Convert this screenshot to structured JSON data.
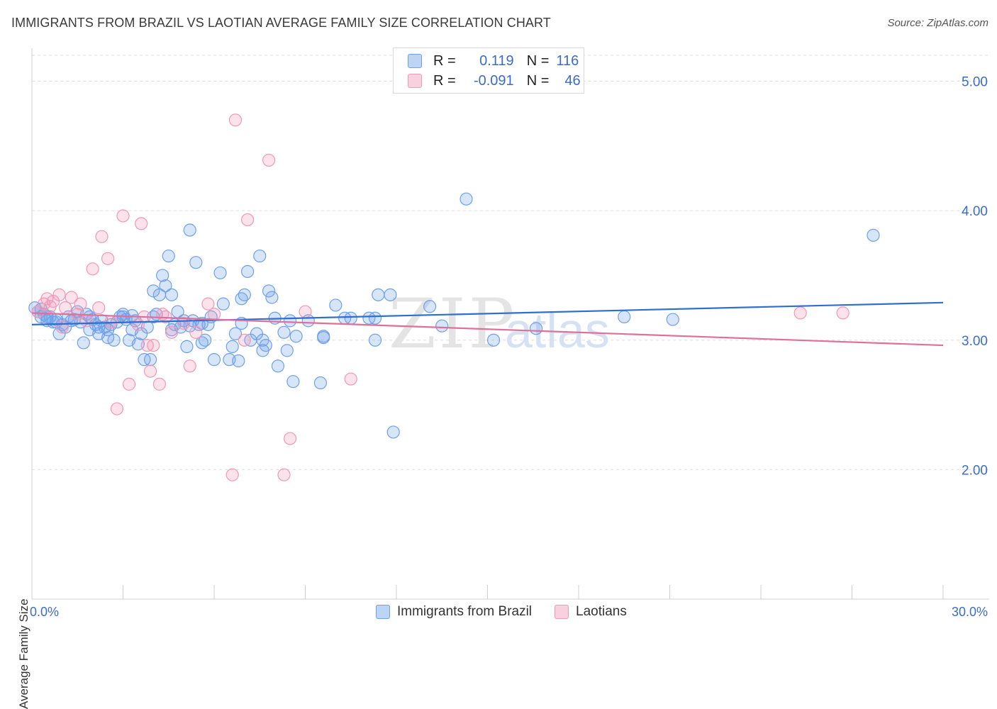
{
  "title": "IMMIGRANTS FROM BRAZIL VS LAOTIAN AVERAGE FAMILY SIZE CORRELATION CHART",
  "source": "Source: ZipAtlas.com",
  "watermark": {
    "zip": "ZIP",
    "atlas": "atlas"
  },
  "legend": {
    "rows": [
      {
        "r_label": "R =",
        "r_value": "0.119",
        "n_label": "N =",
        "n_value": "116",
        "color": "#6fa0e8"
      },
      {
        "r_label": "R =",
        "r_value": "-0.091",
        "n_label": "N =",
        "n_value": "46",
        "color": "#f098b7"
      }
    ]
  },
  "bottom_legend": [
    {
      "label": "Immigrants from Brazil",
      "color": "#6fa0e8"
    },
    {
      "label": "Laotians",
      "color": "#f098b7"
    }
  ],
  "chart_data": {
    "type": "scatter",
    "title": "IMMIGRANTS FROM BRAZIL VS LAOTIAN AVERAGE FAMILY SIZE CORRELATION CHART",
    "xlabel": "",
    "ylabel": "Average Family Size",
    "xlim": [
      0,
      30
    ],
    "ylim": [
      1.0,
      5.2
    ],
    "x_tick_labels": [
      "0.0%",
      "30.0%"
    ],
    "y_ticks": [
      2.0,
      3.0,
      4.0,
      5.0
    ],
    "y_tick_labels": [
      "2.00",
      "3.00",
      "4.00",
      "5.00"
    ],
    "grid": true,
    "series": [
      {
        "name": "Immigrants from Brazil",
        "color": "#6fa0e8",
        "trend": {
          "x": [
            0,
            30
          ],
          "y": [
            3.12,
            3.29
          ]
        },
        "points": [
          [
            0.1,
            3.25
          ],
          [
            0.2,
            3.22
          ],
          [
            0.3,
            3.18
          ],
          [
            0.4,
            3.2
          ],
          [
            0.5,
            3.15
          ],
          [
            0.6,
            3.18
          ],
          [
            0.7,
            3.14
          ],
          [
            0.8,
            3.16
          ],
          [
            0.9,
            3.05
          ],
          [
            1.0,
            3.12
          ],
          [
            1.1,
            3.1
          ],
          [
            1.2,
            3.18
          ],
          [
            1.3,
            3.15
          ],
          [
            1.5,
            3.22
          ],
          [
            1.6,
            3.14
          ],
          [
            1.7,
            2.98
          ],
          [
            1.8,
            3.2
          ],
          [
            1.9,
            3.08
          ],
          [
            2.0,
            3.16
          ],
          [
            2.1,
            3.12
          ],
          [
            2.2,
            3.05
          ],
          [
            2.3,
            3.15
          ],
          [
            2.4,
            3.1
          ],
          [
            2.5,
            3.02
          ],
          [
            2.6,
            3.12
          ],
          [
            2.7,
            3.0
          ],
          [
            2.8,
            3.14
          ],
          [
            2.9,
            3.18
          ],
          [
            3.0,
            3.2
          ],
          [
            3.1,
            3.16
          ],
          [
            3.2,
            3.0
          ],
          [
            3.3,
            3.08
          ],
          [
            3.4,
            3.15
          ],
          [
            3.5,
            2.97
          ],
          [
            3.6,
            3.05
          ],
          [
            3.7,
            2.85
          ],
          [
            3.8,
            3.1
          ],
          [
            3.9,
            2.85
          ],
          [
            4.0,
            3.38
          ],
          [
            4.1,
            3.2
          ],
          [
            4.2,
            3.35
          ],
          [
            4.3,
            3.5
          ],
          [
            4.4,
            3.42
          ],
          [
            4.5,
            3.65
          ],
          [
            4.6,
            3.35
          ],
          [
            4.7,
            3.12
          ],
          [
            4.8,
            3.22
          ],
          [
            4.9,
            3.1
          ],
          [
            5.0,
            3.15
          ],
          [
            5.1,
            2.95
          ],
          [
            5.2,
            3.85
          ],
          [
            5.3,
            3.15
          ],
          [
            5.4,
            3.6
          ],
          [
            5.5,
            3.12
          ],
          [
            5.6,
            2.98
          ],
          [
            5.7,
            3.0
          ],
          [
            5.8,
            3.12
          ],
          [
            5.9,
            3.18
          ],
          [
            6.0,
            2.85
          ],
          [
            6.2,
            3.52
          ],
          [
            6.3,
            3.28
          ],
          [
            6.5,
            2.85
          ],
          [
            6.6,
            2.95
          ],
          [
            6.7,
            3.05
          ],
          [
            6.8,
            2.84
          ],
          [
            6.9,
            3.32
          ],
          [
            7.0,
            3.35
          ],
          [
            7.1,
            3.53
          ],
          [
            7.2,
            3.0
          ],
          [
            7.4,
            3.05
          ],
          [
            7.5,
            3.65
          ],
          [
            7.6,
            2.92
          ],
          [
            7.7,
            2.96
          ],
          [
            7.8,
            3.38
          ],
          [
            7.9,
            3.33
          ],
          [
            8.1,
            2.8
          ],
          [
            8.3,
            3.06
          ],
          [
            8.4,
            2.92
          ],
          [
            8.5,
            3.15
          ],
          [
            8.6,
            2.68
          ],
          [
            8.7,
            3.03
          ],
          [
            9.1,
            3.15
          ],
          [
            9.5,
            2.67
          ],
          [
            9.6,
            3.03
          ],
          [
            10.0,
            3.27
          ],
          [
            10.3,
            3.17
          ],
          [
            10.5,
            3.17
          ],
          [
            11.1,
            3.17
          ],
          [
            11.3,
            3.0
          ],
          [
            11.4,
            3.35
          ],
          [
            11.8,
            3.35
          ],
          [
            11.9,
            2.29
          ],
          [
            13.1,
            3.26
          ],
          [
            13.5,
            3.11
          ],
          [
            14.3,
            4.09
          ],
          [
            15.2,
            3.0
          ],
          [
            16.6,
            3.09
          ],
          [
            19.5,
            3.18
          ],
          [
            21.1,
            3.16
          ],
          [
            27.7,
            3.81
          ],
          [
            0.3,
            3.24
          ],
          [
            0.5,
            3.18
          ],
          [
            0.8,
            3.14
          ],
          [
            1.4,
            3.16
          ],
          [
            1.9,
            3.18
          ],
          [
            2.2,
            3.1
          ],
          [
            2.5,
            3.08
          ],
          [
            3.3,
            3.19
          ],
          [
            4.0,
            3.18
          ],
          [
            4.6,
            3.08
          ],
          [
            5.2,
            3.11
          ],
          [
            5.6,
            3.13
          ],
          [
            6.9,
            3.13
          ],
          [
            7.6,
            3.0
          ],
          [
            9.6,
            3.02
          ],
          [
            11.3,
            3.17
          ],
          [
            8.0,
            3.17
          ],
          [
            3.0,
            3.18
          ]
        ]
      },
      {
        "name": "Laotians",
        "color": "#f098b7",
        "trend": {
          "x": [
            0,
            30
          ],
          "y": [
            3.21,
            2.96
          ]
        },
        "points": [
          [
            0.2,
            3.22
          ],
          [
            0.4,
            3.28
          ],
          [
            0.5,
            3.32
          ],
          [
            0.6,
            3.26
          ],
          [
            0.7,
            3.3
          ],
          [
            0.9,
            3.35
          ],
          [
            1.1,
            3.25
          ],
          [
            1.3,
            3.33
          ],
          [
            1.5,
            3.2
          ],
          [
            1.6,
            3.28
          ],
          [
            1.8,
            3.15
          ],
          [
            2.0,
            3.55
          ],
          [
            2.2,
            3.25
          ],
          [
            2.3,
            3.8
          ],
          [
            2.5,
            3.63
          ],
          [
            2.6,
            3.14
          ],
          [
            2.8,
            2.47
          ],
          [
            3.0,
            3.96
          ],
          [
            3.2,
            2.66
          ],
          [
            3.5,
            3.12
          ],
          [
            3.6,
            3.9
          ],
          [
            3.7,
            3.18
          ],
          [
            3.8,
            2.96
          ],
          [
            3.9,
            2.76
          ],
          [
            4.0,
            2.96
          ],
          [
            4.2,
            2.66
          ],
          [
            4.4,
            3.18
          ],
          [
            4.6,
            3.06
          ],
          [
            5.0,
            3.13
          ],
          [
            5.2,
            2.8
          ],
          [
            5.4,
            3.06
          ],
          [
            5.8,
            3.28
          ],
          [
            6.0,
            3.2
          ],
          [
            6.6,
            1.96
          ],
          [
            6.7,
            4.7
          ],
          [
            7.0,
            3.0
          ],
          [
            7.1,
            3.93
          ],
          [
            7.8,
            4.39
          ],
          [
            8.3,
            1.96
          ],
          [
            8.5,
            2.24
          ],
          [
            9.0,
            3.22
          ],
          [
            10.5,
            2.7
          ],
          [
            25.3,
            3.21
          ],
          [
            26.7,
            3.21
          ],
          [
            4.3,
            3.2
          ],
          [
            1.0,
            3.1
          ]
        ]
      }
    ]
  }
}
